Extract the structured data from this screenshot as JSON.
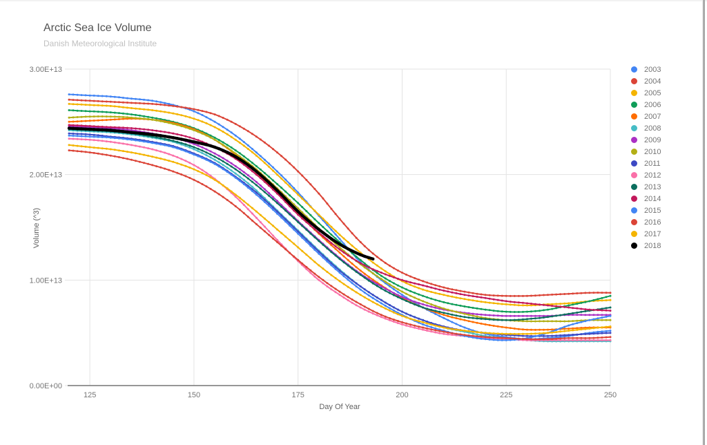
{
  "window": {
    "edge_color": "#8a8a8a"
  },
  "styles": {
    "grid_color": "#e3e3e3",
    "axis_line_color": "#757575",
    "tick_label_color": "#757575",
    "axis_title_color": "#616161",
    "title_color": "#515151",
    "subtitle_color": "#c0c0c0"
  },
  "chart_data": {
    "type": "line",
    "title": "Arctic Sea Ice Volume",
    "subtitle": "Danish Meteorological Institute",
    "xlabel": "Day Of Year",
    "ylabel": "Volume (^3)",
    "xlim": [
      120,
      250
    ],
    "ylim": [
      0,
      30000000000000.0
    ],
    "grid": true,
    "legend_position": "right",
    "x_ticks": [
      125,
      150,
      175,
      200,
      225,
      250
    ],
    "y_ticks": [
      {
        "value": 0,
        "label": "0.00E+00"
      },
      {
        "value": 10000000000000.0,
        "label": "1.00E+13"
      },
      {
        "value": 20000000000000.0,
        "label": "2.00E+13"
      },
      {
        "value": 30000000000000.0,
        "label": "3.00E+13"
      }
    ],
    "x": [
      120,
      125,
      130,
      135,
      140,
      145,
      150,
      155,
      160,
      165,
      170,
      175,
      180,
      185,
      190,
      195,
      200,
      205,
      210,
      215,
      220,
      225,
      230,
      235,
      240,
      245,
      250
    ],
    "series": [
      {
        "name": "2003",
        "color": "#4285f4",
        "values": [
          27600000000000.0,
          27500000000000.0,
          27400000000000.0,
          27200000000000.0,
          27000000000000.0,
          26600000000000.0,
          26000000000000.0,
          25000000000000.0,
          23700000000000.0,
          22100000000000.0,
          20300000000000.0,
          18300000000000.0,
          16100000000000.0,
          13900000000000.0,
          11700000000000.0,
          10000000000000.0,
          8600000000000.0,
          7400000000000.0,
          6400000000000.0,
          5500000000000.0,
          4900000000000.0,
          4600000000000.0,
          4400000000000.0,
          4500000000000.0,
          4700000000000.0,
          5000000000000.0,
          5200000000000.0
        ]
      },
      {
        "name": "2004",
        "color": "#db4437",
        "values": [
          27100000000000.0,
          27000000000000.0,
          26900000000000.0,
          26800000000000.0,
          26700000000000.0,
          26500000000000.0,
          26200000000000.0,
          25700000000000.0,
          24800000000000.0,
          23600000000000.0,
          22100000000000.0,
          20300000000000.0,
          18200000000000.0,
          15800000000000.0,
          13600000000000.0,
          11900000000000.0,
          10700000000000.0,
          9900000000000.0,
          9300000000000.0,
          8900000000000.0,
          8600000000000.0,
          8500000000000.0,
          8500000000000.0,
          8600000000000.0,
          8700000000000.0,
          8800000000000.0,
          8800000000000.0
        ]
      },
      {
        "name": "2005",
        "color": "#f4b400",
        "values": [
          26700000000000.0,
          26600000000000.0,
          26500000000000.0,
          26300000000000.0,
          26100000000000.0,
          25800000000000.0,
          25300000000000.0,
          24500000000000.0,
          23300000000000.0,
          21800000000000.0,
          20000000000000.0,
          18100000000000.0,
          16200000000000.0,
          14300000000000.0,
          12600000000000.0,
          11100000000000.0,
          9900000000000.0,
          9100000000000.0,
          8600000000000.0,
          8200000000000.0,
          7900000000000.0,
          7700000000000.0,
          7600000000000.0,
          7700000000000.0,
          7800000000000.0,
          8000000000000.0,
          8100000000000.0
        ]
      },
      {
        "name": "2006",
        "color": "#0f9d58",
        "values": [
          26100000000000.0,
          26000000000000.0,
          25900000000000.0,
          25700000000000.0,
          25400000000000.0,
          25000000000000.0,
          24400000000000.0,
          23500000000000.0,
          22300000000000.0,
          20800000000000.0,
          19100000000000.0,
          17300000000000.0,
          15400000000000.0,
          13600000000000.0,
          11900000000000.0,
          10400000000000.0,
          9300000000000.0,
          8500000000000.0,
          7900000000000.0,
          7500000000000.0,
          7200000000000.0,
          7000000000000.0,
          7000000000000.0,
          7200000000000.0,
          7600000000000.0,
          8000000000000.0,
          8500000000000.0
        ]
      },
      {
        "name": "2007",
        "color": "#ff6d00",
        "values": [
          25000000000000.0,
          25100000000000.0,
          25200000000000.0,
          25300000000000.0,
          25200000000000.0,
          24900000000000.0,
          24300000000000.0,
          23300000000000.0,
          21900000000000.0,
          20200000000000.0,
          18300000000000.0,
          16300000000000.0,
          14400000000000.0,
          12600000000000.0,
          10900000000000.0,
          9500000000000.0,
          8300000000000.0,
          7400000000000.0,
          6700000000000.0,
          6200000000000.0,
          5800000000000.0,
          5500000000000.0,
          5300000000000.0,
          5300000000000.0,
          5400000000000.0,
          5500000000000.0,
          5500000000000.0
        ]
      },
      {
        "name": "2008",
        "color": "#46bdc6",
        "values": [
          24200000000000.0,
          24100000000000.0,
          24000000000000.0,
          23800000000000.0,
          23500000000000.0,
          23100000000000.0,
          22400000000000.0,
          21400000000000.0,
          20100000000000.0,
          18500000000000.0,
          16600000000000.0,
          14700000000000.0,
          12800000000000.0,
          11000000000000.0,
          9400000000000.0,
          8100000000000.0,
          7000000000000.0,
          6200000000000.0,
          5500000000000.0,
          5100000000000.0,
          4700000000000.0,
          4500000000000.0,
          4300000000000.0,
          4200000000000.0,
          4200000000000.0,
          4200000000000.0,
          4200000000000.0
        ]
      },
      {
        "name": "2009",
        "color": "#ab30c4",
        "values": [
          24600000000000.0,
          24500000000000.0,
          24400000000000.0,
          24200000000000.0,
          23900000000000.0,
          23500000000000.0,
          22900000000000.0,
          22000000000000.0,
          20800000000000.0,
          19300000000000.0,
          17500000000000.0,
          15600000000000.0,
          13800000000000.0,
          12100000000000.0,
          10600000000000.0,
          9400000000000.0,
          8400000000000.0,
          7700000000000.0,
          7200000000000.0,
          6900000000000.0,
          6700000000000.0,
          6600000000000.0,
          6600000000000.0,
          6600000000000.0,
          6700000000000.0,
          6700000000000.0,
          6700000000000.0
        ]
      },
      {
        "name": "2010",
        "color": "#b3af16",
        "values": [
          25400000000000.0,
          25500000000000.0,
          25500000000000.0,
          25400000000000.0,
          25200000000000.0,
          24800000000000.0,
          24200000000000.0,
          23300000000000.0,
          22000000000000.0,
          20500000000000.0,
          18700000000000.0,
          16800000000000.0,
          14900000000000.0,
          13100000000000.0,
          11500000000000.0,
          10100000000000.0,
          8900000000000.0,
          8000000000000.0,
          7300000000000.0,
          6800000000000.0,
          6400000000000.0,
          6200000000000.0,
          6100000000000.0,
          6100000000000.0,
          6100000000000.0,
          6200000000000.0,
          6200000000000.0
        ]
      },
      {
        "name": "2011",
        "color": "#3d49c4",
        "values": [
          23900000000000.0,
          23800000000000.0,
          23600000000000.0,
          23400000000000.0,
          23100000000000.0,
          22700000000000.0,
          22000000000000.0,
          21100000000000.0,
          19800000000000.0,
          18300000000000.0,
          16500000000000.0,
          14600000000000.0,
          12700000000000.0,
          10900000000000.0,
          9400000000000.0,
          8100000000000.0,
          7000000000000.0,
          6200000000000.0,
          5600000000000.0,
          5200000000000.0,
          5000000000000.0,
          4800000000000.0,
          4700000000000.0,
          4700000000000.0,
          4800000000000.0,
          4900000000000.0,
          5000000000000.0
        ]
      },
      {
        "name": "2012",
        "color": "#fa70a8",
        "values": [
          23400000000000.0,
          23300000000000.0,
          23100000000000.0,
          22800000000000.0,
          22400000000000.0,
          21800000000000.0,
          20900000000000.0,
          19600000000000.0,
          17900000000000.0,
          15900000000000.0,
          13800000000000.0,
          11800000000000.0,
          10000000000000.0,
          8600000000000.0,
          7400000000000.0,
          6500000000000.0,
          5800000000000.0,
          5300000000000.0,
          4900000000000.0,
          4700000000000.0,
          4500000000000.0,
          4400000000000.0,
          4300000000000.0,
          4300000000000.0,
          4300000000000.0,
          4300000000000.0,
          4300000000000.0
        ]
      },
      {
        "name": "2013",
        "color": "#0b6e5e",
        "values": [
          24300000000000.0,
          24200000000000.0,
          24100000000000.0,
          23900000000000.0,
          23600000000000.0,
          23200000000000.0,
          22600000000000.0,
          21700000000000.0,
          20500000000000.0,
          19000000000000.0,
          17300000000000.0,
          15500000000000.0,
          13700000000000.0,
          12000000000000.0,
          10500000000000.0,
          9200000000000.0,
          8200000000000.0,
          7400000000000.0,
          6900000000000.0,
          6500000000000.0,
          6300000000000.0,
          6200000000000.0,
          6300000000000.0,
          6500000000000.0,
          6800000000000.0,
          7100000000000.0,
          7400000000000.0
        ]
      },
      {
        "name": "2014",
        "color": "#c2185b",
        "values": [
          24700000000000.0,
          24600000000000.0,
          24500000000000.0,
          24400000000000.0,
          24200000000000.0,
          23900000000000.0,
          23400000000000.0,
          22600000000000.0,
          21500000000000.0,
          20000000000000.0,
          18200000000000.0,
          16200000000000.0,
          14500000000000.0,
          12900000000000.0,
          11600000000000.0,
          10700000000000.0,
          10000000000000.0,
          9500000000000.0,
          9000000000000.0,
          8600000000000.0,
          8300000000000.0,
          8000000000000.0,
          7800000000000.0,
          7600000000000.0,
          7400000000000.0,
          7200000000000.0,
          7100000000000.0
        ]
      },
      {
        "name": "2015",
        "color": "#4285f4",
        "values": [
          23700000000000.0,
          23600000000000.0,
          23500000000000.0,
          23300000000000.0,
          23000000000000.0,
          22600000000000.0,
          21900000000000.0,
          21000000000000.0,
          19700000000000.0,
          18100000000000.0,
          16300000000000.0,
          14400000000000.0,
          12500000000000.0,
          10700000000000.0,
          9100000000000.0,
          7800000000000.0,
          6700000000000.0,
          5800000000000.0,
          5200000000000.0,
          4700000000000.0,
          4400000000000.0,
          4300000000000.0,
          4500000000000.0,
          5000000000000.0,
          5700000000000.0,
          6200000000000.0,
          6600000000000.0
        ]
      },
      {
        "name": "2016",
        "color": "#db4437",
        "values": [
          22300000000000.0,
          22100000000000.0,
          21800000000000.0,
          21400000000000.0,
          20900000000000.0,
          20300000000000.0,
          19500000000000.0,
          18400000000000.0,
          17000000000000.0,
          15300000000000.0,
          13600000000000.0,
          11900000000000.0,
          10300000000000.0,
          8900000000000.0,
          7700000000000.0,
          6700000000000.0,
          6000000000000.0,
          5500000000000.0,
          5100000000000.0,
          4800000000000.0,
          4600000000000.0,
          4500000000000.0,
          4400000000000.0,
          4400000000000.0,
          4500000000000.0,
          4500000000000.0,
          4600000000000.0
        ]
      },
      {
        "name": "2017",
        "color": "#f4b400",
        "values": [
          22800000000000.0,
          22600000000000.0,
          22400000000000.0,
          22100000000000.0,
          21700000000000.0,
          21200000000000.0,
          20500000000000.0,
          19500000000000.0,
          18100000000000.0,
          16500000000000.0,
          14800000000000.0,
          13100000000000.0,
          11400000000000.0,
          9900000000000.0,
          8600000000000.0,
          7500000000000.0,
          6600000000000.0,
          6000000000000.0,
          5500000000000.0,
          5200000000000.0,
          5000000000000.0,
          4900000000000.0,
          4900000000000.0,
          5000000000000.0,
          5200000000000.0,
          5400000000000.0,
          5600000000000.0
        ]
      },
      {
        "name": "2018",
        "color": "#000000",
        "line_width": 4.2,
        "marker_radius": 2.2,
        "x": [
          120,
          125,
          130,
          135,
          140,
          145,
          150,
          155,
          160,
          165,
          170,
          175,
          180,
          185,
          190,
          193
        ],
        "values": [
          24400000000000.0,
          24300000000000.0,
          24200000000000.0,
          24000000000000.0,
          23800000000000.0,
          23500000000000.0,
          23100000000000.0,
          22600000000000.0,
          21700000000000.0,
          20300000000000.0,
          18500000000000.0,
          16500000000000.0,
          14800000000000.0,
          13400000000000.0,
          12400000000000.0,
          12000000000000.0
        ]
      }
    ]
  }
}
